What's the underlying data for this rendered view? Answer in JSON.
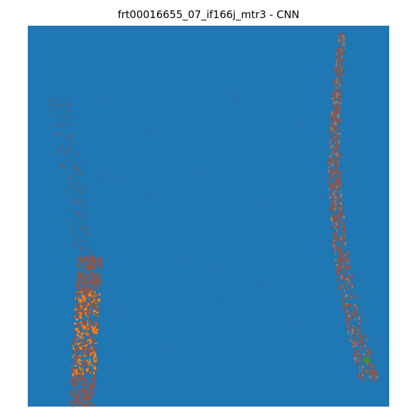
{
  "figure": {
    "title": "frt00016655_07_if166j_mtr3 - CNN"
  },
  "colors": {
    "background_class": "#1f77b4",
    "class_brown": "#8c564b",
    "class_orange": "#ff7f0e",
    "class_gray": "#7f7f7f",
    "class_green": "#2ca02c"
  }
}
